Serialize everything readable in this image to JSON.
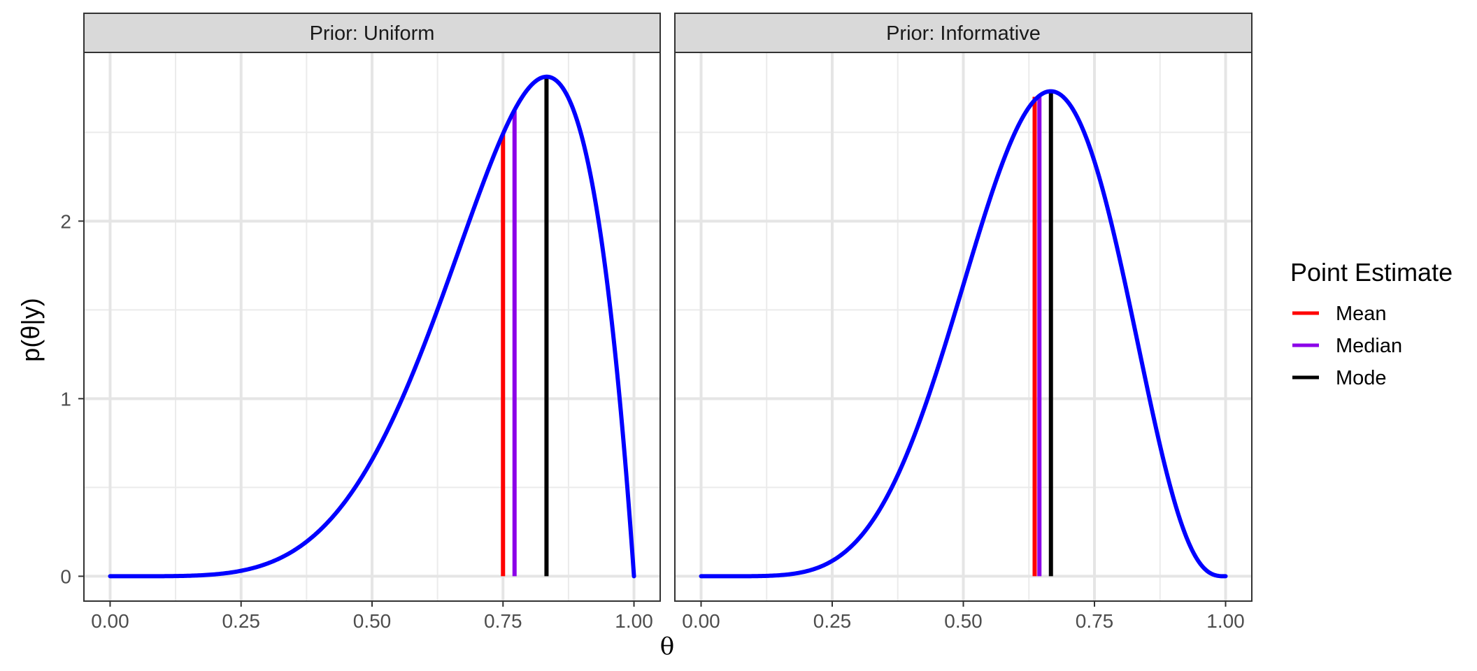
{
  "chart_data": {
    "type": "line",
    "xlabel": "θ",
    "ylabel": "p(θ|y)",
    "xlim": [
      -0.05,
      1.05
    ],
    "ylim": [
      -0.14,
      2.95
    ],
    "x_ticks": [
      "0.00",
      "0.25",
      "0.50",
      "0.75",
      "1.00"
    ],
    "y_ticks": [
      "0",
      "1",
      "2"
    ],
    "grid": true,
    "legend": {
      "title": "Point Estimate",
      "position": "right",
      "items": [
        {
          "label": "Mean",
          "color": "#ff0000"
        },
        {
          "label": "Median",
          "color": "#8b00e8"
        },
        {
          "label": "Mode",
          "color": "#000000"
        }
      ]
    },
    "curve_color": "#0000ff",
    "panels": [
      {
        "title": "Prior: Uniform",
        "density": {
          "alpha": 6,
          "beta": 2
        },
        "estimates": [
          {
            "name": "Mean",
            "x": 0.75,
            "y": 2.49
          },
          {
            "name": "Median",
            "x": 0.772,
            "y": 2.62
          },
          {
            "name": "Mode",
            "x": 0.833,
            "y": 2.81
          }
        ]
      },
      {
        "title": "Prior: Informative",
        "density": {
          "alpha": 7,
          "beta": 4
        },
        "estimates": [
          {
            "name": "Mean",
            "x": 0.636,
            "y": 2.7
          },
          {
            "name": "Median",
            "x": 0.645,
            "y": 2.71
          },
          {
            "name": "Mode",
            "x": 0.667,
            "y": 2.73
          }
        ]
      }
    ]
  }
}
